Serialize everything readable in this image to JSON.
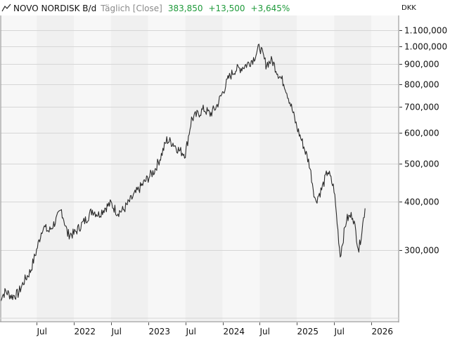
{
  "header": {
    "icon": "line-chart-icon",
    "symbol": "NOVO NORDISK B/d",
    "period": "Täglich [Close]",
    "last": "383,850",
    "change": "+13,500",
    "change_pct": "+3,645%",
    "positive_color": "#1e9a3a"
  },
  "y_axis": {
    "currency": "DKK",
    "ticks": [
      "1.100,000",
      "1.000,000",
      "900,000",
      "800,000",
      "700,000",
      "600,000",
      "500,000",
      "400,000",
      "300,000"
    ]
  },
  "x_axis": {
    "ticks": [
      "Jul",
      "2022",
      "Jul",
      "2023",
      "Jul",
      "2024",
      "Jul",
      "2025",
      "Jul",
      "2026"
    ]
  },
  "chart_data": {
    "type": "line",
    "title": "NOVO NORDISK B/d Täglich [Close]",
    "xlabel": "",
    "ylabel": "DKK",
    "y_scale": "log",
    "ylim": [
      210,
      1150
    ],
    "grid": true,
    "legend": "none",
    "x_ticks": [
      "Jul 2021",
      "2022",
      "Jul 2022",
      "2023",
      "Jul 2023",
      "2024",
      "Jul 2024",
      "2025",
      "Jul 2025",
      "2026"
    ],
    "y_ticks": [
      1100,
      1000,
      900,
      800,
      700,
      600,
      500,
      400,
      300
    ],
    "series": [
      {
        "name": "NOVO NORDISK B Close (DKK)",
        "x": [
          "2021-01",
          "2021-02",
          "2021-03",
          "2021-04",
          "2021-05",
          "2021-06",
          "2021-07",
          "2021-08",
          "2021-09",
          "2021-10",
          "2021-11",
          "2021-12",
          "2022-01",
          "2022-02",
          "2022-03",
          "2022-04",
          "2022-05",
          "2022-06",
          "2022-07",
          "2022-08",
          "2022-09",
          "2022-10",
          "2022-11",
          "2022-12",
          "2023-01",
          "2023-02",
          "2023-03",
          "2023-04",
          "2023-05",
          "2023-06",
          "2023-07",
          "2023-08",
          "2023-09",
          "2023-10",
          "2023-11",
          "2023-12",
          "2024-01",
          "2024-02",
          "2024-03",
          "2024-04",
          "2024-05",
          "2024-06",
          "2024-07",
          "2024-08",
          "2024-09",
          "2024-10",
          "2024-11",
          "2024-12",
          "2025-01",
          "2025-02",
          "2025-03",
          "2025-04",
          "2025-05",
          "2025-06",
          "2025-07",
          "2025-08",
          "2025-09",
          "2025-10",
          "2025-11",
          "2025-12"
        ],
        "values": [
          225,
          235,
          228,
          232,
          250,
          265,
          300,
          345,
          335,
          355,
          380,
          330,
          330,
          345,
          360,
          380,
          370,
          385,
          395,
          375,
          380,
          400,
          420,
          440,
          460,
          480,
          520,
          575,
          565,
          540,
          530,
          650,
          670,
          690,
          670,
          700,
          760,
          830,
          870,
          880,
          900,
          930,
          1000,
          900,
          920,
          850,
          800,
          710,
          620,
          560,
          500,
          400,
          430,
          480,
          430,
          290,
          360,
          370,
          300,
          383.85
        ]
      }
    ],
    "annotations": {
      "last_value": 383.85,
      "change": 13.5,
      "change_pct": 3.645
    }
  }
}
